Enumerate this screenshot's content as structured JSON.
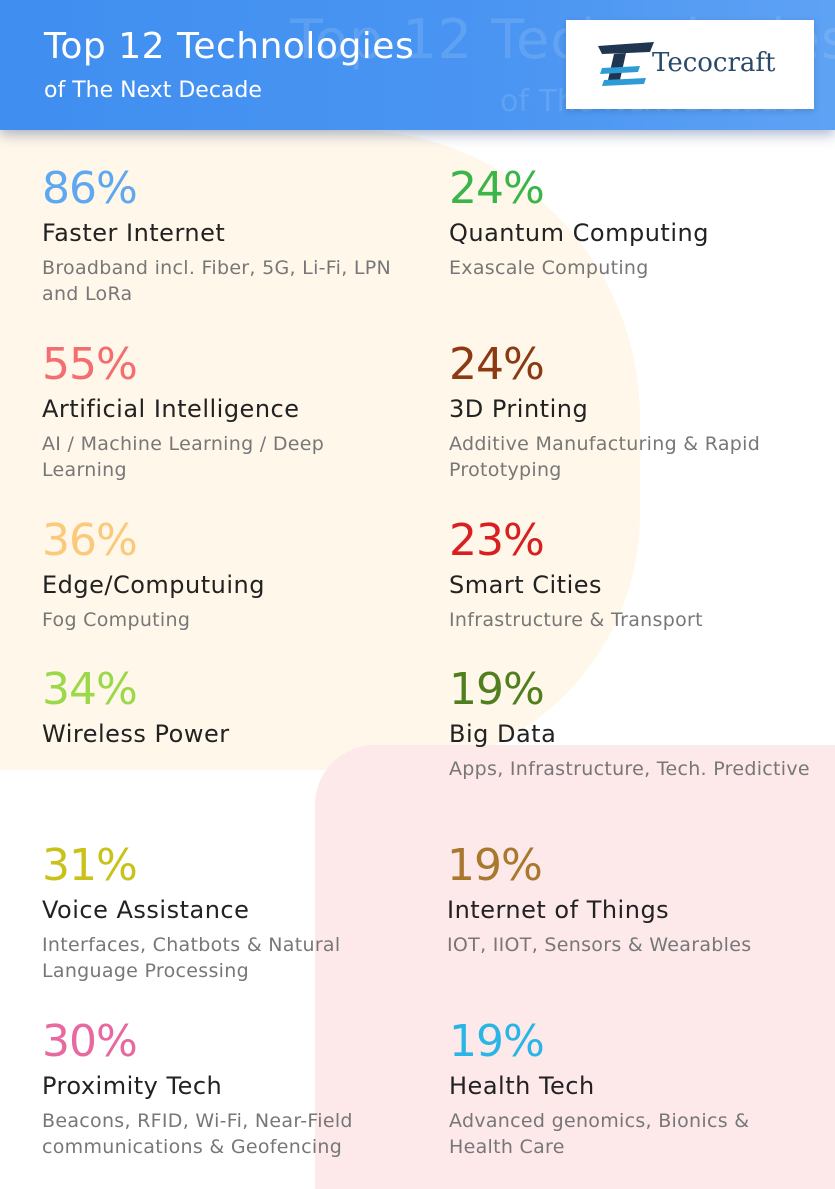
{
  "header": {
    "title": "Top 12 Technologies",
    "subtitle": "of The Next Decade",
    "logo_text": "Tecocraft",
    "background": "#3f8ef0"
  },
  "items": [
    {
      "percent": "86%",
      "name": "Faster Internet",
      "desc": "Broadband incl. Fiber, 5G, Li-Fi, LPN and LoRa",
      "color": "#5ea8f0"
    },
    {
      "percent": "24%",
      "name": "Quantum Computing",
      "desc": "Exascale Computing",
      "color": "#3ab54a"
    },
    {
      "percent": "55%",
      "name": "Artificial Intelligence",
      "desc": "AI / Machine Learning / Deep Learning",
      "color": "#f36f6f"
    },
    {
      "percent": "24%",
      "name": "3D Printing",
      "desc": "Additive Manufacturing & Rapid Prototyping",
      "color": "#8b3a12"
    },
    {
      "percent": "36%",
      "name": "Edge/Computuing",
      "desc": "Fog Computing",
      "color": "#fbc97a"
    },
    {
      "percent": "23%",
      "name": "Smart Cities",
      "desc": "Infrastructure & Transport",
      "color": "#d92020"
    },
    {
      "percent": "34%",
      "name": "Wireless Power",
      "desc": "",
      "color": "#9bd84a"
    },
    {
      "percent": "19%",
      "name": "Big Data",
      "desc": "Apps, Infrastructure, Tech. Predictive",
      "color": "#4f7f1e"
    },
    {
      "percent": "31%",
      "name": "Voice Assistance",
      "desc": "Interfaces, Chatbots & Natural Language Processing",
      "color": "#c9c21a"
    },
    {
      "percent": "19%",
      "name": "Internet of Things",
      "desc": "IOT, IIOT, Sensors & Wearables",
      "color": "#a8782e"
    },
    {
      "percent": "30%",
      "name": "Proximity Tech",
      "desc": "Beacons, RFID, Wi-Fi, Near-Field communications & Geofencing",
      "color": "#e868a0"
    },
    {
      "percent": "19%",
      "name": "Health Tech",
      "desc": "Advanced genomics, Bionics & Health Care",
      "color": "#29b6e6"
    }
  ]
}
